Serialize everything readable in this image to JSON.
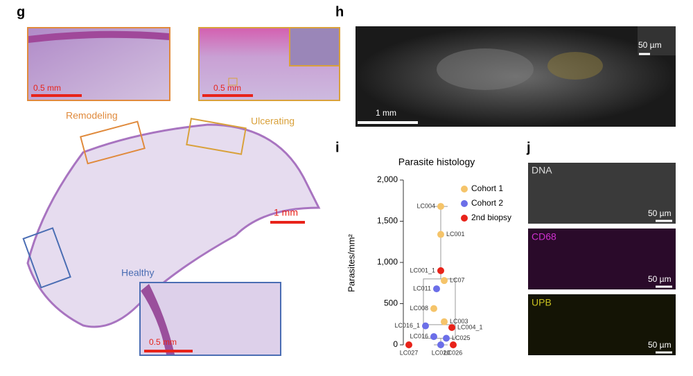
{
  "panel_labels": [
    "g",
    "h",
    "i",
    "j"
  ],
  "panel_g": {
    "remodeling": {
      "label": "Remodeling",
      "scale_bar": "0.5 mm"
    },
    "ulcerating": {
      "label": "Ulcerating",
      "scale_bar": "0.5 mm"
    },
    "healthy": {
      "label": "Healthy",
      "scale_bar": "0.5 mm"
    },
    "overview_scale_bar": "1 mm"
  },
  "panel_h": {
    "scale_bar": "1 mm",
    "inset_scale_bar": "50 µm"
  },
  "panel_j": {
    "channels": [
      {
        "name": "DNA",
        "scale_bar": "50 µm"
      },
      {
        "name": "CD68",
        "scale_bar": "50 µm"
      },
      {
        "name": "UPB",
        "scale_bar": "50 µm"
      }
    ]
  },
  "chart_data": {
    "type": "scatter",
    "title": "Parasite histology",
    "y_label": "Parasites/mm²",
    "ylim": [
      0,
      2000
    ],
    "yticks": [
      0,
      500,
      {
        "value": 1000,
        "label": "1,000"
      },
      {
        "value": 1500,
        "label": "1,500"
      },
      {
        "value": 2000,
        "label": "2,000"
      }
    ],
    "box": {
      "min": 0,
      "q1": 80,
      "median": 245,
      "q3": 800,
      "max": 1680
    },
    "series": [
      {
        "name": "Cohort 1",
        "color": "#f5c46a",
        "labels": [
          "LC004",
          "LC001",
          "LC07",
          "LC008",
          "LC003"
        ],
        "values": [
          1680,
          1340,
          780,
          440,
          280
        ]
      },
      {
        "name": "Cohort 2",
        "color": "#6b6ee8",
        "labels": [
          "LC011",
          "LC016_1",
          "LC016",
          "LC025",
          "LC020"
        ],
        "values": [
          680,
          230,
          100,
          80,
          0
        ]
      },
      {
        "name": "2nd biopsy",
        "color": "#e8231a",
        "labels": [
          "LC001_1",
          "LC004_1",
          "LC027",
          "LC026"
        ],
        "values": [
          900,
          210,
          0,
          0
        ]
      }
    ]
  }
}
